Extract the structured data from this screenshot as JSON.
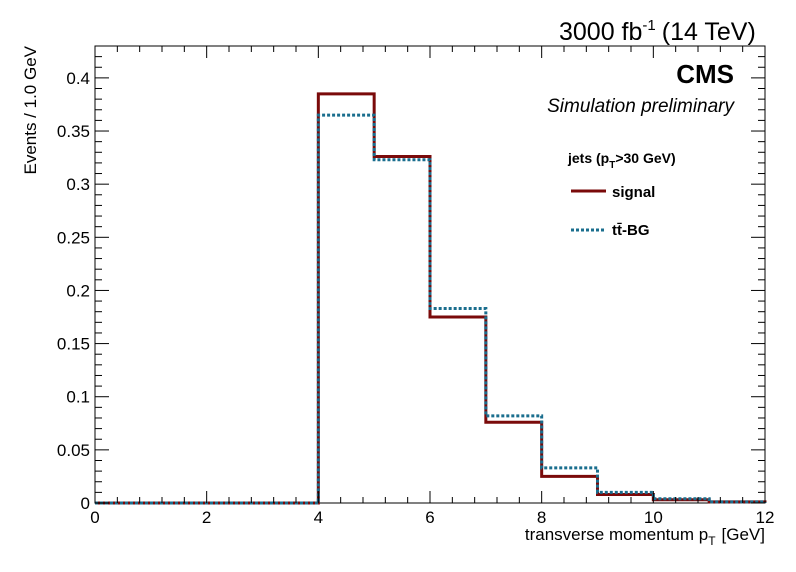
{
  "header": {
    "luminosity": "3000 fb",
    "luminosity_exp": "-1",
    "energy": "(14 TeV)"
  },
  "experiment": "CMS",
  "subtitle": "Simulation preliminary",
  "legend": {
    "header_prefix": "jets (p",
    "header_sub": "T",
    "header_suffix": ">30 GeV)",
    "placement": "top-right"
  },
  "chart_data": {
    "type": "line",
    "style": "step histogram",
    "xlabel": "transverse momentum p",
    "xlabel_sub": "T",
    "xlabel_unit": "[GeV]",
    "ylabel": "Events / 1.0 GeV",
    "xlim": [
      0,
      12
    ],
    "ylim": [
      0,
      0.43
    ],
    "bin_edges": [
      0,
      1,
      2,
      3,
      4,
      5,
      6,
      7,
      8,
      9,
      10,
      11,
      12
    ],
    "x_ticks": [
      0,
      2,
      4,
      6,
      8,
      10,
      12
    ],
    "x_tick_labels": [
      "0",
      "2",
      "4",
      "6",
      "8",
      "10",
      "12"
    ],
    "y_ticks": [
      0,
      0.05,
      0.1,
      0.15,
      0.2,
      0.25,
      0.3,
      0.35,
      0.4
    ],
    "y_tick_labels": [
      "0",
      "0.05",
      "0.1",
      "0.15",
      "0.2",
      "0.25",
      "0.3",
      "0.35",
      "0.4"
    ],
    "grid": false,
    "series": [
      {
        "name": "signal",
        "color": "#7a0a0a",
        "style": "solid",
        "values": [
          0,
          0,
          0,
          0,
          0.385,
          0.326,
          0.175,
          0.076,
          0.025,
          0.008,
          0.003,
          0.001
        ]
      },
      {
        "name": "tt̄-BG",
        "color": "#1a6e8e",
        "style": "dotted",
        "values": [
          0,
          0,
          0,
          0,
          0.365,
          0.323,
          0.183,
          0.082,
          0.033,
          0.01,
          0.004,
          0.001
        ]
      }
    ]
  }
}
